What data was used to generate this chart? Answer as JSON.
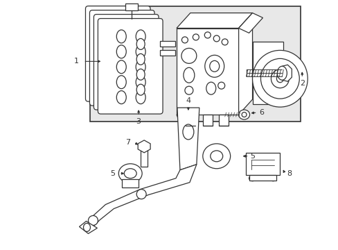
{
  "bg_color": "#ffffff",
  "box_bg": "#e8e8e8",
  "line_color": "#333333",
  "fig_width": 4.89,
  "fig_height": 3.6,
  "dpi": 100
}
